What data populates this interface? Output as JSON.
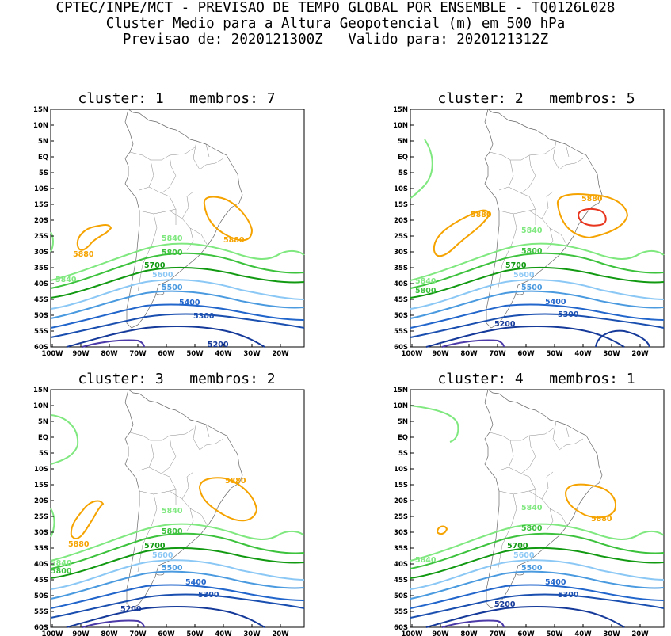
{
  "header": {
    "line1": "CPTEC/INPE/MCT - PREVISAO DE TEMPO GLOBAL POR ENSEMBLE - TQ0126L028",
    "line2": "Cluster Medio para a Altura Geopotencial (m) em 500 hPa",
    "line3": "Previsao de: 2020121300Z   Valido para: 2020121312Z"
  },
  "colors": {
    "c5880": "#f5a300",
    "c5920": "#e8351e",
    "c5840": "#7fe87f",
    "c5800": "#3cc23c",
    "c5700": "#119911",
    "c5600": "#8cc8f5",
    "c5500": "#4a9ae0",
    "c5400": "#2266cc",
    "c5300": "#1a4fb0",
    "c5200": "#163a9a",
    "c5100": "#4b3aa8"
  },
  "axes": {
    "lat_labels": [
      "15N",
      "10N",
      "5N",
      "EQ",
      "5S",
      "10S",
      "15S",
      "20S",
      "25S",
      "30S",
      "35S",
      "40S",
      "45S",
      "50S",
      "55S",
      "60S"
    ],
    "lon_labels": [
      "100W",
      "90W",
      "80W",
      "70W",
      "60W",
      "50W",
      "40W",
      "30W",
      "20W"
    ]
  },
  "panels": [
    {
      "title": "cluster: 1   membros: 7",
      "labels": [
        {
          "text": "5880",
          "c": "c5880"
        },
        {
          "text": "5880",
          "c": "c5880"
        },
        {
          "text": "5840",
          "c": "c5840"
        },
        {
          "text": "5840",
          "c": "c5840"
        },
        {
          "text": "5800",
          "c": "c5800"
        },
        {
          "text": "5700",
          "c": "c5700"
        },
        {
          "text": "5600",
          "c": "c5600"
        },
        {
          "text": "5500",
          "c": "c5500"
        },
        {
          "text": "5400",
          "c": "c5400"
        },
        {
          "text": "5300",
          "c": "c5300"
        },
        {
          "text": "5200",
          "c": "c5200"
        }
      ]
    },
    {
      "title": "cluster: 2   membros: 5",
      "labels": [
        {
          "text": "5880",
          "c": "c5880"
        },
        {
          "text": "5880",
          "c": "c5880"
        },
        {
          "text": "5840",
          "c": "c5840"
        },
        {
          "text": "5840",
          "c": "c5840"
        },
        {
          "text": "5800",
          "c": "c5800"
        },
        {
          "text": "5800",
          "c": "c5800"
        },
        {
          "text": "5700",
          "c": "c5700"
        },
        {
          "text": "5600",
          "c": "c5600"
        },
        {
          "text": "5500",
          "c": "c5500"
        },
        {
          "text": "5400",
          "c": "c5400"
        },
        {
          "text": "5300",
          "c": "c5300"
        },
        {
          "text": "5200",
          "c": "c5200"
        }
      ]
    },
    {
      "title": "cluster: 3   membros: 2",
      "labels": [
        {
          "text": "5880",
          "c": "c5880"
        },
        {
          "text": "5880",
          "c": "c5880"
        },
        {
          "text": "5840",
          "c": "c5840"
        },
        {
          "text": "5840",
          "c": "c5840"
        },
        {
          "text": "5800",
          "c": "c5800"
        },
        {
          "text": "5800",
          "c": "c5800"
        },
        {
          "text": "5700",
          "c": "c5700"
        },
        {
          "text": "5600",
          "c": "c5600"
        },
        {
          "text": "5500",
          "c": "c5500"
        },
        {
          "text": "5400",
          "c": "c5400"
        },
        {
          "text": "5300",
          "c": "c5300"
        },
        {
          "text": "5200",
          "c": "c5200"
        }
      ]
    },
    {
      "title": "cluster: 4   membros: 1",
      "labels": [
        {
          "text": "5880",
          "c": "c5880"
        },
        {
          "text": "5840",
          "c": "c5840"
        },
        {
          "text": "5840",
          "c": "c5840"
        },
        {
          "text": "5800",
          "c": "c5800"
        },
        {
          "text": "5700",
          "c": "c5700"
        },
        {
          "text": "5600",
          "c": "c5600"
        },
        {
          "text": "5500",
          "c": "c5500"
        },
        {
          "text": "5400",
          "c": "c5400"
        },
        {
          "text": "5300",
          "c": "c5300"
        },
        {
          "text": "5200",
          "c": "c5200"
        }
      ]
    }
  ]
}
